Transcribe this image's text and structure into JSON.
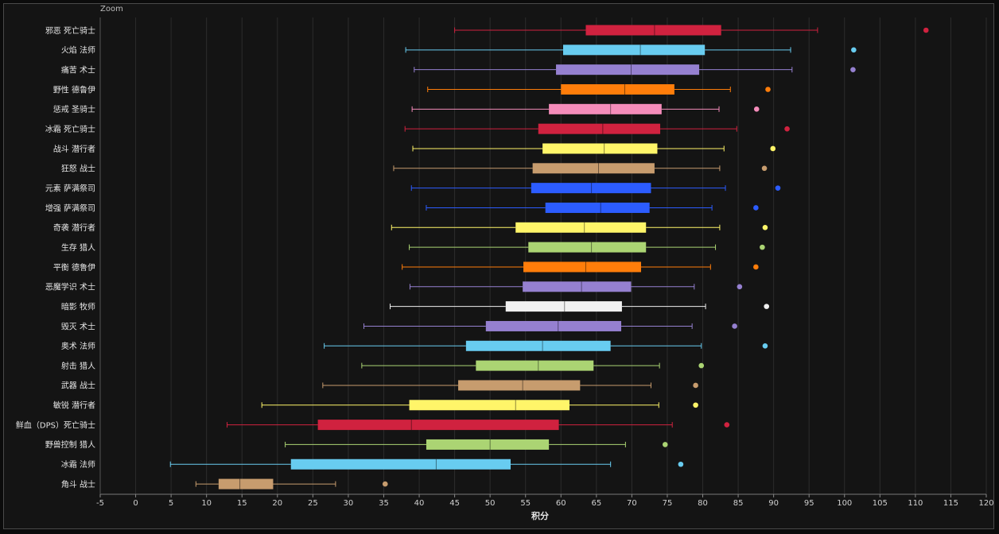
{
  "zoom_label": "Zoom",
  "chart_data": {
    "type": "boxplot",
    "title": "",
    "xlabel": "积分",
    "ylabel": "",
    "xlim": [
      -5,
      120
    ],
    "x_ticks": [
      -5,
      0,
      5,
      10,
      15,
      20,
      25,
      30,
      35,
      40,
      45,
      50,
      55,
      60,
      65,
      70,
      75,
      80,
      85,
      90,
      95,
      100,
      105,
      110,
      115,
      120
    ],
    "grid": true,
    "legend": "none",
    "series": [
      {
        "label": "邪恶 死亡骑士",
        "color": "#d0223f",
        "min": 45.0,
        "q1": 63.5,
        "median": 73.2,
        "q3": 82.6,
        "max": 96.2,
        "outliers": [
          111.5
        ]
      },
      {
        "label": "火焰 法师",
        "color": "#68ccf0",
        "min": 38.1,
        "q1": 60.3,
        "median": 71.2,
        "q3": 80.3,
        "max": 92.4,
        "outliers": [
          101.3
        ]
      },
      {
        "label": "痛苦 术士",
        "color": "#9580d0",
        "min": 39.3,
        "q1": 59.3,
        "median": 69.9,
        "q3": 79.5,
        "max": 92.6,
        "outliers": [
          101.2
        ]
      },
      {
        "label": "野性 德鲁伊",
        "color": "#ff7d0a",
        "min": 41.2,
        "q1": 60.0,
        "median": 69.0,
        "q3": 76.0,
        "max": 83.9,
        "outliers": [
          89.2
        ]
      },
      {
        "label": "惩戒 圣骑士",
        "color": "#f58cba",
        "min": 39.0,
        "q1": 58.3,
        "median": 67.0,
        "q3": 74.2,
        "max": 82.3,
        "outliers": [
          87.6
        ]
      },
      {
        "label": "冰霜 死亡骑士",
        "color": "#d0223f",
        "min": 38.0,
        "q1": 56.8,
        "median": 65.9,
        "q3": 74.0,
        "max": 84.8,
        "outliers": [
          91.9
        ]
      },
      {
        "label": "战斗 潜行者",
        "color": "#fff569",
        "min": 39.1,
        "q1": 57.4,
        "median": 66.1,
        "q3": 73.6,
        "max": 83.0,
        "outliers": [
          89.9
        ]
      },
      {
        "label": "狂怒 战士",
        "color": "#c79c6e",
        "min": 36.4,
        "q1": 56.0,
        "median": 65.3,
        "q3": 73.2,
        "max": 82.4,
        "outliers": [
          88.7
        ]
      },
      {
        "label": "元素 萨满祭司",
        "color": "#2c5cff",
        "min": 38.9,
        "q1": 55.8,
        "median": 64.3,
        "q3": 72.7,
        "max": 83.2,
        "outliers": [
          90.6
        ]
      },
      {
        "label": "增强 萨满祭司",
        "color": "#2c5cff",
        "min": 41.0,
        "q1": 57.8,
        "median": 65.6,
        "q3": 72.5,
        "max": 81.3,
        "outliers": [
          87.5
        ]
      },
      {
        "label": "奇袭 潜行者",
        "color": "#fff569",
        "min": 36.1,
        "q1": 53.6,
        "median": 63.3,
        "q3": 72.0,
        "max": 82.4,
        "outliers": [
          88.8
        ]
      },
      {
        "label": "生存 猎人",
        "color": "#abd473",
        "min": 38.6,
        "q1": 55.4,
        "median": 64.3,
        "q3": 72.0,
        "max": 81.8,
        "outliers": [
          88.4
        ]
      },
      {
        "label": "平衡 德鲁伊",
        "color": "#ff7d0a",
        "min": 37.6,
        "q1": 54.7,
        "median": 63.5,
        "q3": 71.3,
        "max": 81.1,
        "outliers": [
          87.5
        ]
      },
      {
        "label": "恶魔学识 术士",
        "color": "#9580d0",
        "min": 38.7,
        "q1": 54.6,
        "median": 62.9,
        "q3": 69.9,
        "max": 78.8,
        "outliers": [
          85.2
        ]
      },
      {
        "label": "暗影 牧师",
        "color": "#f0f0f0",
        "min": 35.9,
        "q1": 52.2,
        "median": 60.5,
        "q3": 68.6,
        "max": 80.4,
        "outliers": [
          89.0
        ]
      },
      {
        "label": "毁灭 术士",
        "color": "#9580d0",
        "min": 32.2,
        "q1": 49.4,
        "median": 59.6,
        "q3": 68.5,
        "max": 78.5,
        "outliers": [
          84.5
        ]
      },
      {
        "label": "奥术 法师",
        "color": "#68ccf0",
        "min": 26.6,
        "q1": 46.6,
        "median": 57.4,
        "q3": 67.0,
        "max": 79.8,
        "outliers": [
          88.8
        ]
      },
      {
        "label": "射击 猎人",
        "color": "#abd473",
        "min": 31.9,
        "q1": 48.0,
        "median": 56.8,
        "q3": 64.6,
        "max": 73.9,
        "outliers": [
          79.8
        ]
      },
      {
        "label": "武器 战士",
        "color": "#c79c6e",
        "min": 26.4,
        "q1": 45.5,
        "median": 54.6,
        "q3": 62.7,
        "max": 72.7,
        "outliers": [
          79.0
        ]
      },
      {
        "label": "敏锐 潜行者",
        "color": "#fff569",
        "min": 17.8,
        "q1": 38.6,
        "median": 53.6,
        "q3": 61.2,
        "max": 73.8,
        "outliers": [
          79.0
        ]
      },
      {
        "label": "鲜血（DPS）死亡骑士",
        "color": "#d0223f",
        "min": 12.9,
        "q1": 25.7,
        "median": 38.9,
        "q3": 59.7,
        "max": 75.7,
        "outliers": [
          83.4
        ]
      },
      {
        "label": "野兽控制 猎人",
        "color": "#abd473",
        "min": 21.1,
        "q1": 41.0,
        "median": 50.0,
        "q3": 58.3,
        "max": 69.1,
        "outliers": [
          74.7
        ]
      },
      {
        "label": "冰霜 法师",
        "color": "#68ccf0",
        "min": 4.9,
        "q1": 21.9,
        "median": 42.4,
        "q3": 52.9,
        "max": 67.0,
        "outliers": [
          76.9
        ]
      },
      {
        "label": "角斗 战士",
        "color": "#c79c6e",
        "min": 8.5,
        "q1": 11.7,
        "median": 14.7,
        "q3": 19.4,
        "max": 28.2,
        "outliers": [
          35.2
        ]
      }
    ]
  }
}
